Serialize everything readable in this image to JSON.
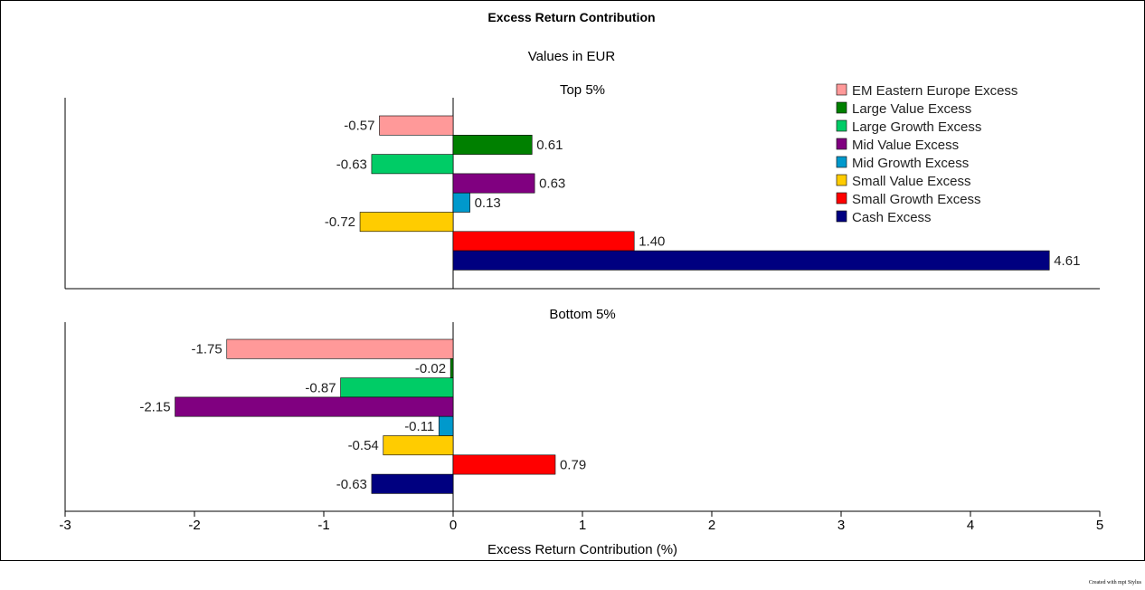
{
  "chart_data": {
    "type": "bar",
    "orientation": "horizontal",
    "title": "Excess Return Contribution",
    "subtitle": "Values in EUR",
    "xlabel": "Excess Return Contribution (%)",
    "xlim": [
      -3,
      5
    ],
    "xticks": [
      -3,
      -2,
      -1,
      0,
      1,
      2,
      3,
      4,
      5
    ],
    "legend_position": "top-right",
    "series": [
      {
        "name": "EM Eastern Europe Excess",
        "color": "#FF9999"
      },
      {
        "name": "Large Value Excess",
        "color": "#008000"
      },
      {
        "name": "Large Growth Excess",
        "color": "#00CC66"
      },
      {
        "name": "Mid Value Excess",
        "color": "#800080"
      },
      {
        "name": "Mid Growth Excess",
        "color": "#0099CC"
      },
      {
        "name": "Small Value Excess",
        "color": "#FFCC00"
      },
      {
        "name": "Small Growth Excess",
        "color": "#FF0000"
      },
      {
        "name": "Cash Excess",
        "color": "#000080"
      }
    ],
    "panels": [
      {
        "title": "Top 5%",
        "values": [
          -0.57,
          0.61,
          -0.63,
          0.63,
          0.13,
          -0.72,
          1.4,
          4.61
        ],
        "labels": [
          "-0.57",
          "0.61",
          "-0.63",
          "0.63",
          "0.13",
          "-0.72",
          "1.40",
          "4.61"
        ]
      },
      {
        "title": "Bottom 5%",
        "values": [
          -1.75,
          -0.02,
          -0.87,
          -2.15,
          -0.11,
          -0.54,
          0.79,
          -0.63
        ],
        "labels": [
          "-1.75",
          "-0.02",
          "-0.87",
          "-2.15",
          "-0.11",
          "-0.54",
          "0.79",
          "-0.63"
        ]
      }
    ]
  },
  "footer": "Created with mpi Stylus"
}
